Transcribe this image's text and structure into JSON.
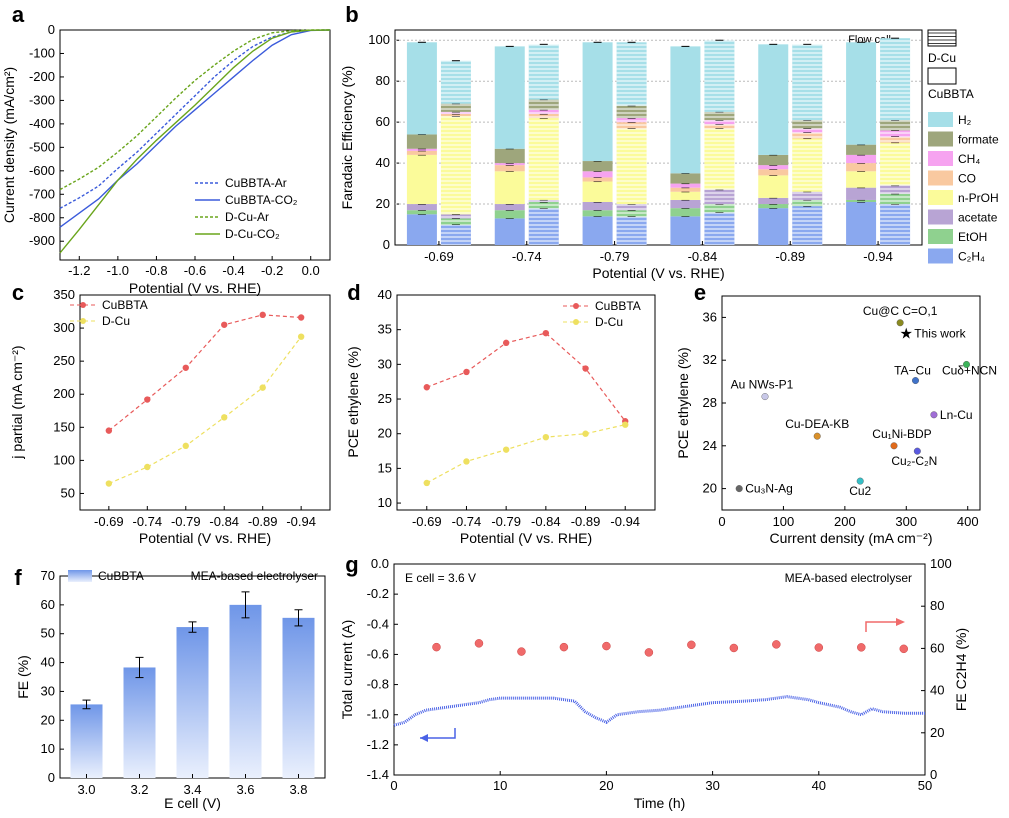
{
  "chart_data": [
    {
      "id": "a",
      "panel_label": "a",
      "type": "line",
      "xlabel": "Potential (V vs. RHE)",
      "ylabel": "Current density (mA/cm²)",
      "xlim": [
        -1.3,
        0.1
      ],
      "ylim": [
        -980,
        0
      ],
      "xticks": [
        "-1.2",
        "-1.0",
        "-0.8",
        "-0.6",
        "-0.4",
        "-0.2",
        "0.0"
      ],
      "yticks": [
        "0",
        "-100",
        "-200",
        "-300",
        "-400",
        "-500",
        "-600",
        "-700",
        "-800",
        "-900"
      ],
      "legend_position": "bottom-right",
      "series": [
        {
          "name": "CuBBTA-Ar",
          "color": "#3b5bdb",
          "dash": true,
          "x": [
            -1.3,
            -1.2,
            -1.1,
            -1.0,
            -0.9,
            -0.8,
            -0.7,
            -0.6,
            -0.5,
            -0.4,
            -0.3,
            -0.2,
            -0.1,
            0.0,
            0.1
          ],
          "y": [
            -760,
            -715,
            -665,
            -590,
            -520,
            -440,
            -360,
            -280,
            -200,
            -130,
            -70,
            -30,
            -8,
            -1,
            0
          ]
        },
        {
          "name": "CuBBTA-CO₂",
          "color": "#3b5bdb",
          "dash": false,
          "x": [
            -1.3,
            -1.2,
            -1.1,
            -1.0,
            -0.9,
            -0.8,
            -0.7,
            -0.6,
            -0.5,
            -0.4,
            -0.3,
            -0.2,
            -0.1,
            0.0,
            0.1
          ],
          "y": [
            -840,
            -780,
            -720,
            -640,
            -570,
            -490,
            -410,
            -340,
            -270,
            -200,
            -130,
            -65,
            -20,
            -2,
            0
          ]
        },
        {
          "name": "D-Cu-Ar",
          "color": "#6aa51c",
          "dash": true,
          "x": [
            -1.3,
            -1.2,
            -1.1,
            -1.0,
            -0.9,
            -0.8,
            -0.7,
            -0.6,
            -0.5,
            -0.4,
            -0.3,
            -0.2,
            -0.1,
            0.0,
            0.1
          ],
          "y": [
            -680,
            -635,
            -585,
            -520,
            -450,
            -370,
            -290,
            -215,
            -150,
            -90,
            -40,
            -12,
            -3,
            0,
            0
          ]
        },
        {
          "name": "D-Cu-CO₂",
          "color": "#6aa51c",
          "dash": false,
          "x": [
            -1.3,
            -1.2,
            -1.1,
            -1.0,
            -0.9,
            -0.8,
            -0.7,
            -0.6,
            -0.5,
            -0.4,
            -0.3,
            -0.2,
            -0.1,
            0.0,
            0.1
          ],
          "y": [
            -950,
            -850,
            -745,
            -640,
            -550,
            -470,
            -395,
            -320,
            -240,
            -160,
            -90,
            -35,
            -8,
            -1,
            0
          ]
        }
      ]
    },
    {
      "id": "b",
      "panel_label": "b",
      "type": "bar",
      "xlabel": "Potential (V vs. RHE)",
      "ylabel": "Faradaic Efficiency (%)",
      "ylim": [
        0,
        105
      ],
      "yticks": [
        "0",
        "20",
        "40",
        "60",
        "80",
        "100"
      ],
      "categories": [
        "-0.69",
        "-0.74",
        "-0.79",
        "-0.84",
        "-0.89",
        "-0.94"
      ],
      "annotation": "Flow cell",
      "pattern_legend": [
        "D-Cu",
        "CuBBTA"
      ],
      "legend_position": "right",
      "components": [
        {
          "name": "H₂",
          "color": "#a6dfe8"
        },
        {
          "name": "formate",
          "color": "#9ea67c"
        },
        {
          "name": "CH₄",
          "color": "#f6a3f0"
        },
        {
          "name": "CO",
          "color": "#f9c9a0"
        },
        {
          "name": "n-PrOH",
          "color": "#fbfb9a"
        },
        {
          "name": "acetate",
          "color": "#b8a4d4"
        },
        {
          "name": "EtOH",
          "color": "#8fd18f"
        },
        {
          "name": "C₂H₄",
          "color": "#8aa8ef"
        }
      ],
      "stacks_CuBBTA": [
        [
          45,
          7,
          1,
          2,
          24,
          3,
          2,
          15
        ],
        [
          50,
          7,
          1,
          3,
          16,
          3,
          4,
          13
        ],
        [
          58,
          5,
          3,
          2,
          10,
          4,
          3,
          14
        ],
        [
          62,
          5,
          2,
          2,
          4,
          4,
          4,
          14
        ],
        [
          54,
          5,
          2,
          3,
          11,
          3,
          2,
          18
        ],
        [
          50,
          5,
          4,
          4,
          8,
          6,
          1,
          21
        ]
      ],
      "stacks_DCu": [
        [
          21,
          4,
          1,
          1,
          48,
          2,
          3,
          10
        ],
        [
          27,
          5,
          2,
          2,
          40,
          1,
          3,
          18
        ],
        [
          31,
          6,
          2,
          3,
          37,
          3,
          3,
          14
        ],
        [
          35,
          4,
          2,
          2,
          30,
          7,
          4,
          16
        ],
        [
          37,
          4,
          2,
          3,
          26,
          4,
          3,
          19
        ],
        [
          40,
          5,
          3,
          3,
          21,
          4,
          5,
          20
        ]
      ]
    },
    {
      "id": "c",
      "panel_label": "c",
      "type": "line",
      "xlabel": "Potential (V vs. RHE)",
      "ylabel": "j partial (mA cm⁻²)",
      "categories": [
        "-0.69",
        "-0.74",
        "-0.79",
        "-0.84",
        "-0.89",
        "-0.94"
      ],
      "ylim": [
        25,
        350
      ],
      "yticks": [
        "50",
        "100",
        "150",
        "200",
        "250",
        "300",
        "350"
      ],
      "legend_position": "top-left",
      "series": [
        {
          "name": "CuBBTA",
          "color": "#e85a5a",
          "values": [
            145,
            192,
            240,
            305,
            320,
            316
          ]
        },
        {
          "name": "D-Cu",
          "color": "#eee060",
          "values": [
            65,
            90,
            122,
            165,
            210,
            287
          ]
        }
      ]
    },
    {
      "id": "d",
      "panel_label": "d",
      "type": "line",
      "xlabel": "Potential (V vs. RHE)",
      "ylabel": "PCE ethylene (%)",
      "categories": [
        "-0.69",
        "-0.74",
        "-0.79",
        "-0.84",
        "-0.89",
        "-0.94"
      ],
      "ylim": [
        9,
        40
      ],
      "yticks": [
        "10",
        "15",
        "20",
        "25",
        "30",
        "35",
        "40"
      ],
      "legend_position": "top-right",
      "series": [
        {
          "name": "CuBBTA",
          "color": "#e85a5a",
          "values": [
            26.7,
            28.9,
            33.1,
            34.5,
            29.4,
            21.8
          ]
        },
        {
          "name": "D-Cu",
          "color": "#eee060",
          "values": [
            12.9,
            16.0,
            17.7,
            19.5,
            20.0,
            21.3
          ]
        }
      ]
    },
    {
      "id": "e",
      "panel_label": "e",
      "type": "scatter",
      "xlabel": "Current density (mA cm⁻²)",
      "ylabel": "PCE ethylene (%)",
      "xlim": [
        0,
        420
      ],
      "ylim": [
        18,
        38
      ],
      "xticks": [
        "0",
        "100",
        "200",
        "300",
        "400"
      ],
      "yticks": [
        "20",
        "24",
        "28",
        "32",
        "36"
      ],
      "points": [
        {
          "label": "Cu@C C=O,1",
          "x": 290,
          "y": 35.5,
          "color": "#8a8a20"
        },
        {
          "label": "This work",
          "x": 300,
          "y": 34.5,
          "color": "#ff7070",
          "star": true
        },
        {
          "label": "Cuδ+NCN",
          "x": 398,
          "y": 31.6,
          "color": "#3cb35a"
        },
        {
          "label": "TA−Cu",
          "x": 315,
          "y": 30.1,
          "color": "#3f72c9"
        },
        {
          "label": "Au NWs-P1",
          "x": 70,
          "y": 28.6,
          "color": "#c8c8e8"
        },
        {
          "label": "Ln-Cu",
          "x": 345,
          "y": 26.9,
          "color": "#a06ed6"
        },
        {
          "label": "Cu-DEA-KB",
          "x": 155,
          "y": 24.9,
          "color": "#d9902a"
        },
        {
          "label": "Cu₁Ni-BDP",
          "x": 280,
          "y": 24.0,
          "color": "#e06a1a"
        },
        {
          "label": "Cu₂-C₂N",
          "x": 318,
          "y": 23.5,
          "color": "#5a5ae0"
        },
        {
          "label": "Cu2",
          "x": 225,
          "y": 20.7,
          "color": "#36c0c8"
        },
        {
          "label": "Cu₃N-Ag",
          "x": 28,
          "y": 20.0,
          "color": "#666666"
        }
      ]
    },
    {
      "id": "f",
      "panel_label": "f",
      "type": "bar",
      "xlabel": "E cell (V)",
      "ylabel": "FE (%)",
      "annotation": "MEA-based electrolyser",
      "ylim": [
        0,
        70
      ],
      "yticks": [
        "0",
        "10",
        "20",
        "30",
        "40",
        "50",
        "60",
        "70"
      ],
      "categories": [
        "3.0",
        "3.2",
        "3.4",
        "3.6",
        "3.8"
      ],
      "series": [
        {
          "name": "CuBBTA",
          "color": "#7ea3ea",
          "values": [
            25.5,
            38.3,
            52.3,
            60.0,
            55.5
          ],
          "errors": [
            1.5,
            3.5,
            1.8,
            4.5,
            2.8
          ]
        }
      ]
    },
    {
      "id": "g",
      "panel_label": "g",
      "type": "scatter",
      "xlabel": "Time (h)",
      "ylabel": "Total current (A)",
      "y2label": "FE C2H4 (%)",
      "annotation_1": "E cell = 3.6 V",
      "annotation_2": "MEA-based electrolyser",
      "xlim": [
        0,
        50
      ],
      "ylim": [
        -1.4,
        0.0
      ],
      "y2lim": [
        0,
        100
      ],
      "xticks": [
        "0",
        "10",
        "20",
        "30",
        "40",
        "50"
      ],
      "yticks": [
        "0.0",
        "-0.2",
        "-0.4",
        "-0.6",
        "-0.8",
        "-1.0",
        "-1.2",
        "-1.4"
      ],
      "y2ticks": [
        "0",
        "20",
        "40",
        "60",
        "80",
        "100"
      ],
      "current_trace": {
        "color": "#4a62e6",
        "x": [
          0,
          1,
          2,
          3,
          4,
          5,
          6,
          7,
          8,
          9,
          10,
          12,
          15,
          17,
          18,
          19,
          20,
          21,
          23,
          25,
          28,
          30,
          33,
          35,
          37,
          39,
          40,
          42,
          43,
          44,
          45,
          46,
          48,
          50
        ],
        "y": [
          -1.07,
          -1.05,
          -1.0,
          -0.97,
          -0.96,
          -0.95,
          -0.94,
          -0.93,
          -0.92,
          -0.9,
          -0.89,
          -0.89,
          -0.89,
          -0.91,
          -0.98,
          -1.02,
          -1.05,
          -1.0,
          -0.98,
          -0.97,
          -0.94,
          -0.92,
          -0.91,
          -0.9,
          -0.88,
          -0.9,
          -0.92,
          -0.95,
          -0.98,
          -1.0,
          -0.96,
          -0.98,
          -0.99,
          -0.99
        ]
      },
      "fe_points": {
        "color": "#f06a6a",
        "x": [
          4,
          8,
          12,
          16,
          20,
          24,
          28,
          32,
          36,
          40,
          44,
          48
        ],
        "y": [
          60.6,
          62.4,
          58.5,
          60.6,
          61.1,
          58.1,
          61.7,
          60.2,
          61.9,
          60.4,
          60.5,
          59.8
        ]
      }
    }
  ]
}
